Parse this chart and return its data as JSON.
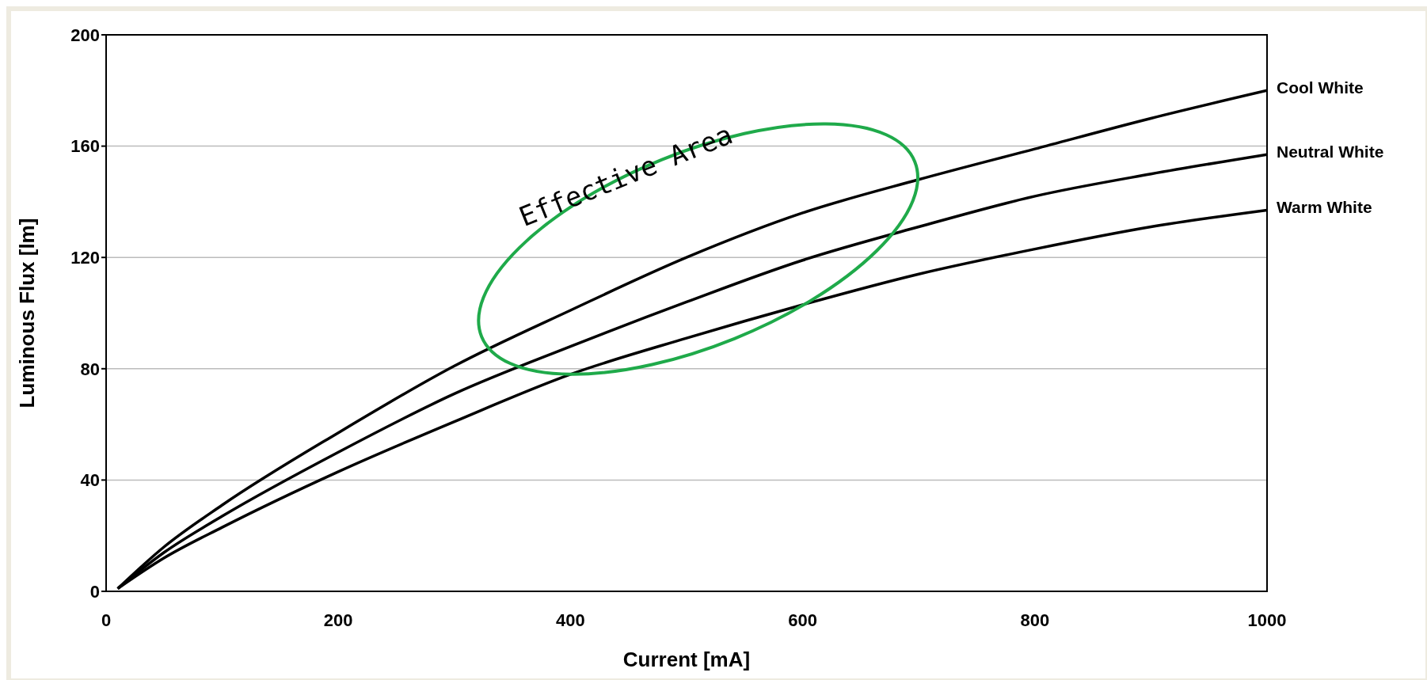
{
  "chart_data": {
    "type": "line",
    "xlabel": "Current [mA]",
    "ylabel": "Luminous Flux [lm]",
    "xlim": [
      0,
      1000
    ],
    "xticks": [
      0,
      200,
      400,
      600,
      800,
      1000
    ],
    "ylim": [
      0,
      200
    ],
    "yticks": [
      0,
      40,
      80,
      120,
      160,
      200
    ],
    "grid": "y",
    "marker": "none",
    "line_style": "solid",
    "x": [
      10,
      50,
      100,
      200,
      300,
      400,
      500,
      600,
      700,
      800,
      900,
      1000
    ],
    "series": [
      {
        "name": "Cool White",
        "color": "#000000",
        "values": [
          1,
          16,
          31,
          57,
          81,
          101,
          120,
          136,
          148,
          159,
          170,
          180
        ]
      },
      {
        "name": "Neutral White",
        "color": "#000000",
        "values": [
          1,
          14,
          27,
          50,
          71,
          88,
          104,
          119,
          131,
          142,
          150,
          157
        ]
      },
      {
        "name": "Warm White",
        "color": "#000000",
        "values": [
          1,
          12,
          23,
          43,
          61,
          78,
          91,
          103,
          114,
          123,
          131,
          137
        ]
      }
    ],
    "annotations": [
      "Effective Area"
    ]
  }
}
